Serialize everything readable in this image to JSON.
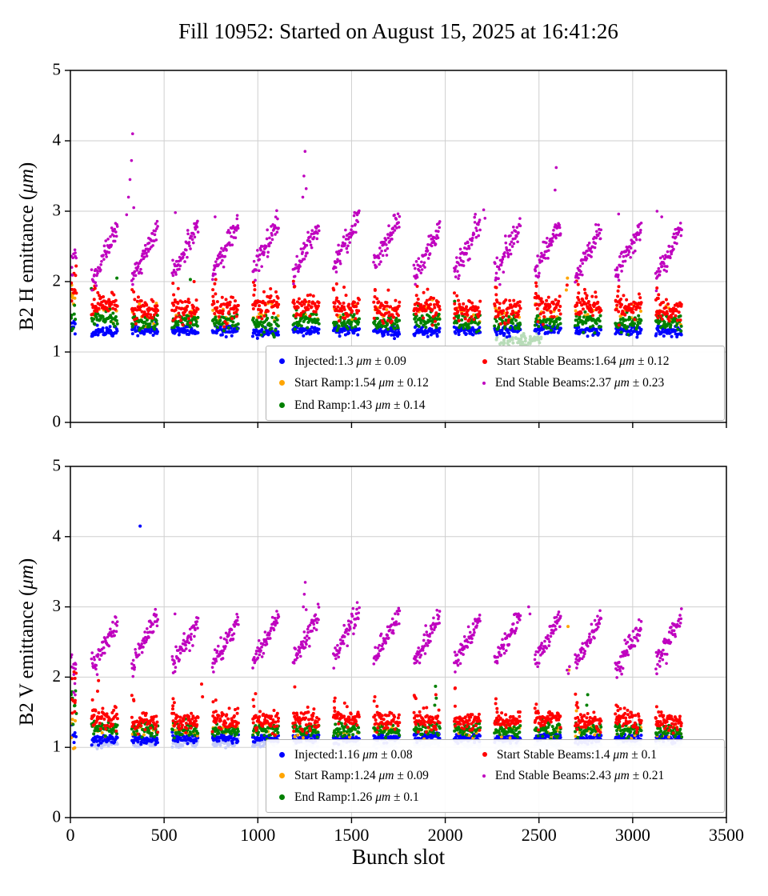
{
  "title": "Fill 10952: Started on August 15, 2025 at 16:41:26",
  "bunch_trains": {
    "start": 112,
    "count": 15,
    "spacing": 215,
    "width": 140,
    "injection_cluster_x": [
      3,
      32
    ]
  },
  "chart_data": [
    {
      "type": "scatter",
      "ylabel": "B2 H emittance (μm)",
      "xlabel": "",
      "xlim": [
        0,
        3500
      ],
      "ylim": [
        0,
        5
      ],
      "xticks": [
        0,
        500,
        1000,
        1500,
        2000,
        2500,
        3000,
        3500
      ],
      "yticks": [
        0,
        1,
        2,
        3,
        4,
        5
      ],
      "grid": true,
      "legend_position": "lower right",
      "series": [
        {
          "name": "Injected",
          "color": "#0000ff",
          "legend_mean": "1.3",
          "legend_std": "0.09",
          "marker_px": 7,
          "size": 2.0,
          "gen": {
            "mean": 1.3,
            "std": 0.035,
            "n": 46
          },
          "train_jitter": 0.015,
          "cluster": {
            "n": 9,
            "mean": 1.38,
            "std": 0.06
          },
          "outliers": []
        },
        {
          "name": "Start Ramp",
          "color": "#ffa500",
          "legend_mean": "1.54",
          "legend_std": "0.12",
          "marker_px": 7,
          "size": 2.0,
          "gen": {
            "mean": 1.55,
            "std": 0.07,
            "n": 9
          },
          "train_jitter": 0.02,
          "cluster": {
            "n": 8,
            "mean": 1.8,
            "std": 0.1
          },
          "outliers": [
            [
              2652,
              2.05
            ],
            [
              2646,
              1.88
            ]
          ]
        },
        {
          "name": "End Ramp",
          "color": "#008000",
          "legend_mean": "1.43",
          "legend_std": "0.14",
          "marker_px": 7,
          "size": 2.0,
          "gen": {
            "mean": 1.43,
            "std": 0.055,
            "n": 42
          },
          "train_jitter": 0.02,
          "cluster": {
            "n": 8,
            "mean": 1.52,
            "std": 0.1
          },
          "outliers": [
            [
              248,
              2.05
            ],
            [
              640,
              2.03
            ],
            [
              112,
              1.9
            ],
            [
              2050,
              1.72
            ]
          ]
        },
        {
          "name": "Start Stable Beams",
          "color": "#ff0000",
          "legend_mean": "1.64",
          "legend_std": "0.12",
          "marker_px": 6,
          "size": 2.0,
          "gen": {
            "mean": 1.62,
            "std": 0.085,
            "n": 52
          },
          "train_jitter": 0.025,
          "early": true,
          "cluster": {
            "n": 10,
            "mean": 1.95,
            "std": 0.12
          },
          "outliers": [
            [
              660,
              2.0
            ],
            [
              1460,
              1.92
            ],
            [
              2650,
              1.95
            ]
          ]
        },
        {
          "name": "End Stable Beams",
          "color": "#bf00bf",
          "legend_mean": "2.37",
          "legend_std": "0.23",
          "marker_px": 4,
          "size": 1.8,
          "gen": {
            "mean": 2.12,
            "std": 0.085,
            "n": 56
          },
          "trend": 0.72,
          "train_jitter": 0.06,
          "cluster": {
            "n": 10,
            "mean": 2.25,
            "std": 0.12
          },
          "outliers": [
            [
              300,
              2.95
            ],
            [
              310,
              3.2
            ],
            [
              318,
              3.45
            ],
            [
              326,
              3.72
            ],
            [
              332,
              4.1
            ],
            [
              338,
              3.05
            ],
            [
              1240,
              3.2
            ],
            [
              1246,
              3.5
            ],
            [
              1252,
              3.85
            ],
            [
              1258,
              3.32
            ],
            [
              2586,
              3.3
            ],
            [
              2592,
              3.62
            ],
            [
              2205,
              3.02
            ],
            [
              2212,
              2.9
            ],
            [
              2925,
              2.96
            ],
            [
              3130,
              3.0
            ],
            [
              3155,
              2.92
            ],
            [
              560,
              2.98
            ],
            [
              772,
              2.92
            ]
          ]
        }
      ],
      "ghost_series": [
        {
          "color": "#b8dcb8",
          "size": 2.0,
          "gen": {
            "mean": 1.16,
            "std": 0.04,
            "n": 70
          },
          "xrange": [
            2270,
            2520
          ]
        }
      ]
    },
    {
      "type": "scatter",
      "ylabel": "B2 V emittance (μm)",
      "xlabel": "Bunch slot",
      "xlim": [
        0,
        3500
      ],
      "ylim": [
        0,
        5
      ],
      "xticks": [
        0,
        500,
        1000,
        1500,
        2000,
        2500,
        3000,
        3500
      ],
      "yticks": [
        0,
        1,
        2,
        3,
        4,
        5
      ],
      "grid": true,
      "legend_position": "lower right",
      "series": [
        {
          "name": "Injected",
          "color": "#0000ff",
          "legend_mean": "1.16",
          "legend_std": "0.08",
          "marker_px": 7,
          "size": 2.0,
          "gen": {
            "mean": 1.13,
            "std": 0.03,
            "n": 46
          },
          "train_jitter": 0.012,
          "cluster": {
            "n": 9,
            "mean": 1.18,
            "std": 0.09
          },
          "outliers": [
            [
              372,
              4.15
            ]
          ]
        },
        {
          "name": "Start Ramp",
          "color": "#ffa500",
          "legend_mean": "1.24",
          "legend_std": "0.09",
          "marker_px": 7,
          "size": 2.0,
          "gen": {
            "mean": 1.23,
            "std": 0.05,
            "n": 9
          },
          "train_jitter": 0.015,
          "cluster": {
            "n": 6,
            "mean": 1.33,
            "std": 0.12
          },
          "outliers": [
            [
              2655,
              2.72
            ],
            [
              2660,
              2.1
            ],
            [
              2700,
              1.52
            ]
          ]
        },
        {
          "name": "End Ramp",
          "color": "#008000",
          "legend_mean": "1.26",
          "legend_std": "0.1",
          "marker_px": 7,
          "size": 2.0,
          "gen": {
            "mean": 1.25,
            "std": 0.05,
            "n": 42
          },
          "train_jitter": 0.015,
          "cluster": {
            "n": 8,
            "mean": 1.5,
            "std": 0.18
          },
          "outliers": [
            [
              1948,
              1.87
            ],
            [
              1952,
              1.7
            ],
            [
              1944,
              1.6
            ],
            [
              2760,
              1.75
            ],
            [
              2755,
              1.6
            ]
          ]
        },
        {
          "name": "Start Stable Beams",
          "color": "#ff0000",
          "legend_mean": "1.4",
          "legend_std": "0.1",
          "marker_px": 6,
          "size": 2.0,
          "gen": {
            "mean": 1.38,
            "std": 0.07,
            "n": 52
          },
          "train_jitter": 0.02,
          "early": true,
          "cluster": {
            "n": 10,
            "mean": 1.85,
            "std": 0.22
          },
          "outliers": [
            [
              150,
              1.95
            ],
            [
              145,
              1.8
            ],
            [
              700,
              1.9
            ],
            [
              705,
              1.72
            ],
            [
              1950,
              1.75
            ],
            [
              2700,
              1.6
            ]
          ]
        },
        {
          "name": "End Stable Beams",
          "color": "#bf00bf",
          "legend_mean": "2.43",
          "legend_std": "0.21",
          "marker_px": 4,
          "size": 1.8,
          "gen": {
            "mean": 2.18,
            "std": 0.08,
            "n": 56
          },
          "trend": 0.68,
          "train_jitter": 0.055,
          "cluster": {
            "n": 12,
            "mean": 2.1,
            "std": 0.16
          },
          "outliers": [
            [
              1243,
              3.0
            ],
            [
              1248,
              3.18
            ],
            [
              1253,
              3.35
            ],
            [
              1258,
              2.96
            ],
            [
              2445,
              3.0
            ],
            [
              2452,
              2.9
            ],
            [
              558,
              2.9
            ],
            [
              2650,
              2.1
            ],
            [
              2657,
              2.05
            ],
            [
              2663,
              2.15
            ]
          ]
        }
      ],
      "ghost_series": [
        {
          "color": "#c4cbf8",
          "size": 2.0,
          "gen": {
            "mean": 1.06,
            "std": 0.028,
            "n": 38
          }
        }
      ]
    }
  ]
}
